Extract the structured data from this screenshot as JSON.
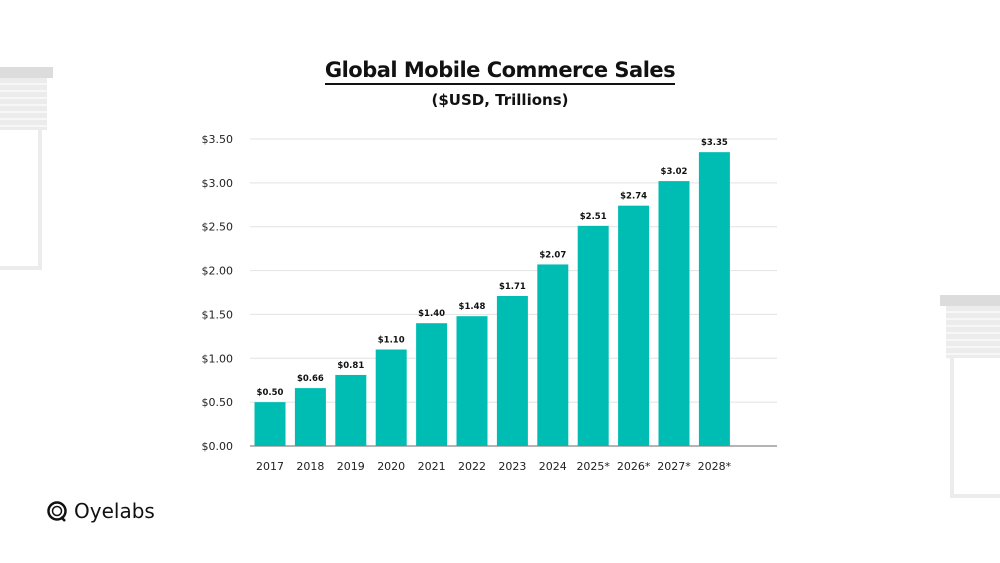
{
  "chart_data": {
    "type": "bar",
    "title": "Global Mobile Commerce Sales",
    "subtitle": "($USD, Trillions)",
    "xlabel": "",
    "ylabel": "",
    "categories": [
      "2017",
      "2018",
      "2019",
      "2020",
      "2021",
      "2022",
      "2023",
      "2024",
      "2025*",
      "2026*",
      "2027*",
      "2028*"
    ],
    "values": [
      0.5,
      0.66,
      0.81,
      1.1,
      1.4,
      1.48,
      1.71,
      2.07,
      2.51,
      2.74,
      3.02,
      3.35
    ],
    "data_labels": [
      "$0.50",
      "$0.66",
      "$0.81",
      "$1.10",
      "$1.40",
      "$1.48",
      "$1.71",
      "$2.07",
      "$2.51",
      "$2.74",
      "$3.02",
      "$3.35"
    ],
    "ylim": [
      0,
      3.5
    ],
    "yticks": [
      0,
      0.5,
      1,
      1.5,
      2,
      2.5,
      3,
      3.5
    ],
    "ytick_labels": [
      "$0.00",
      "$0.50",
      "$1.00",
      "$1.50",
      "$2.00",
      "$2.50",
      "$3.00",
      "$3.50"
    ],
    "grid": true,
    "legend": "none",
    "bar_color": "#00BDB4"
  },
  "brand": {
    "name": "Oyelabs",
    "icon": "oyelabs-logo-icon"
  }
}
